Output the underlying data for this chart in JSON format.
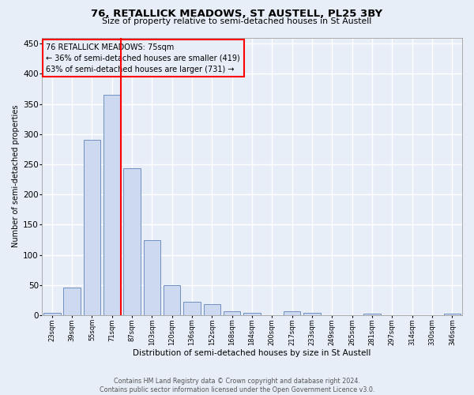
{
  "title1": "76, RETALLICK MEADOWS, ST AUSTELL, PL25 3BY",
  "title2": "Size of property relative to semi-detached houses in St Austell",
  "xlabel": "Distribution of semi-detached houses by size in St Austell",
  "ylabel": "Number of semi-detached properties",
  "bar_labels": [
    "23sqm",
    "39sqm",
    "55sqm",
    "71sqm",
    "87sqm",
    "103sqm",
    "120sqm",
    "136sqm",
    "152sqm",
    "168sqm",
    "184sqm",
    "200sqm",
    "217sqm",
    "233sqm",
    "249sqm",
    "265sqm",
    "281sqm",
    "297sqm",
    "314sqm",
    "330sqm",
    "346sqm"
  ],
  "bar_values": [
    4,
    46,
    290,
    365,
    244,
    124,
    49,
    22,
    18,
    6,
    4,
    0,
    6,
    4,
    0,
    0,
    2,
    0,
    0,
    0,
    2
  ],
  "bar_color": "#ccd9f0",
  "bar_edge_color": "#7090c0",
  "red_line_x": 3,
  "annotation_title": "76 RETALLICK MEADOWS: 75sqm",
  "annotation_line1": "← 36% of semi-detached houses are smaller (419)",
  "annotation_line2": "63% of semi-detached houses are larger (731) →",
  "ylim": [
    0,
    460
  ],
  "yticks": [
    0,
    50,
    100,
    150,
    200,
    250,
    300,
    350,
    400,
    450
  ],
  "footer1": "Contains HM Land Registry data © Crown copyright and database right 2024.",
  "footer2": "Contains public sector information licensed under the Open Government Licence v3.0.",
  "bg_color": "#e8eef8",
  "grid_color": "#ffffff"
}
